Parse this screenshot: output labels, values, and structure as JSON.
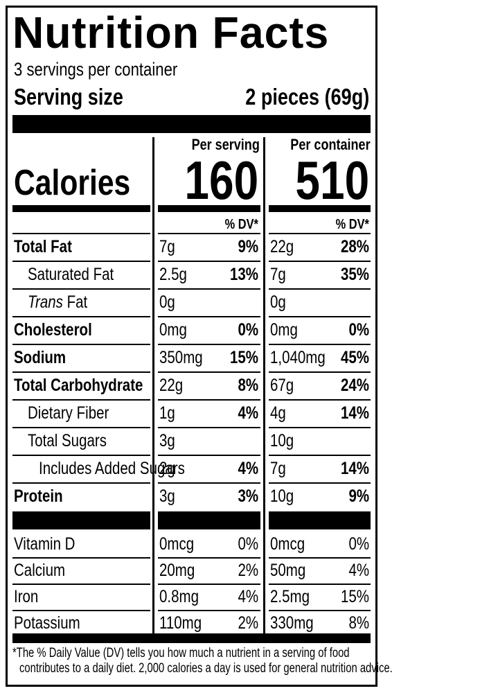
{
  "title": "Nutrition Facts",
  "servings_per_container": "3 servings per container",
  "serving_size_label": "Serving size",
  "serving_size_value": "2 pieces (69g)",
  "columns": {
    "per_serving": "Per serving",
    "per_container": "Per container"
  },
  "calories": {
    "label": "Calories",
    "per_serving": "160",
    "per_container": "510"
  },
  "dv_header": "% DV*",
  "nutrients": [
    {
      "label": "Total Fat",
      "bold": true,
      "indent": 0,
      "serving_amount": "7g",
      "serving_dv": "9%",
      "container_amount": "22g",
      "container_dv": "28%"
    },
    {
      "label": "Saturated Fat",
      "bold": false,
      "indent": 1,
      "serving_amount": "2.5g",
      "serving_dv": "13%",
      "container_amount": "7g",
      "container_dv": "35%"
    },
    {
      "label_italic": "Trans",
      "label": " Fat",
      "bold": false,
      "indent": 1,
      "serving_amount": "0g",
      "serving_dv": "",
      "container_amount": "0g",
      "container_dv": ""
    },
    {
      "label": "Cholesterol",
      "bold": true,
      "indent": 0,
      "serving_amount": "0mg",
      "serving_dv": "0%",
      "container_amount": "0mg",
      "container_dv": "0%"
    },
    {
      "label": "Sodium",
      "bold": true,
      "indent": 0,
      "serving_amount": "350mg",
      "serving_dv": "15%",
      "container_amount": "1,040mg",
      "container_dv": "45%"
    },
    {
      "label": "Total Carbohydrate",
      "bold": true,
      "indent": 0,
      "serving_amount": "22g",
      "serving_dv": "8%",
      "container_amount": "67g",
      "container_dv": "24%"
    },
    {
      "label": "Dietary Fiber",
      "bold": false,
      "indent": 1,
      "serving_amount": "1g",
      "serving_dv": "4%",
      "container_amount": "4g",
      "container_dv": "14%"
    },
    {
      "label": "Total Sugars",
      "bold": false,
      "indent": 1,
      "serving_amount": "3g",
      "serving_dv": "",
      "container_amount": "10g",
      "container_dv": ""
    },
    {
      "label": "Includes Added Sugars",
      "bold": false,
      "indent": 2,
      "serving_amount": "2g",
      "serving_dv": "4%",
      "container_amount": "7g",
      "container_dv": "14%"
    },
    {
      "label": "Protein",
      "bold": true,
      "indent": 0,
      "serving_amount": "3g",
      "serving_dv": "3%",
      "container_amount": "10g",
      "container_dv": "9%"
    }
  ],
  "vitamins": [
    {
      "label": "Vitamin D",
      "serving_amount": "0mcg",
      "serving_dv": "0%",
      "container_amount": "0mcg",
      "container_dv": "0%"
    },
    {
      "label": "Calcium",
      "serving_amount": "20mg",
      "serving_dv": "2%",
      "container_amount": "50mg",
      "container_dv": "4%"
    },
    {
      "label": "Iron",
      "serving_amount": "0.8mg",
      "serving_dv": "4%",
      "container_amount": "2.5mg",
      "container_dv": "15%"
    },
    {
      "label": "Potassium",
      "serving_amount": "110mg",
      "serving_dv": "2%",
      "container_amount": "330mg",
      "container_dv": "8%"
    }
  ],
  "footnote_line1": "*The % Daily Value (DV) tells you how much a nutrient in a serving of food",
  "footnote_line2": "contributes to a daily diet. 2,000 calories a day is used for general nutrition advice."
}
